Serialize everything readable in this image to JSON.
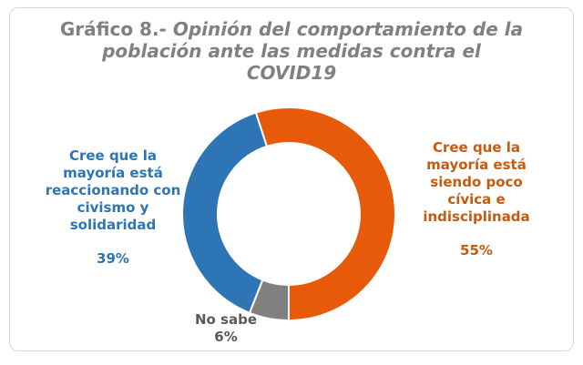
{
  "chart_data": {
    "type": "pie",
    "donut": true,
    "title_prefix": "Gráfico 8.-",
    "title": "Opinión del comportamiento de la población ante las medidas contra el COVID19",
    "slices": [
      {
        "label": "Cree que la mayoría está siendo poco cívica e indisciplinada",
        "value": 55,
        "value_label": "55%",
        "color": "#E65A0A"
      },
      {
        "label": "No sabe",
        "value": 6,
        "value_label": "6%",
        "color": "#808080"
      },
      {
        "label": "Cree que la mayoría está reaccionando con civismo y solidaridad",
        "value": 39,
        "value_label": "39%",
        "color": "#2E75B6"
      }
    ]
  }
}
